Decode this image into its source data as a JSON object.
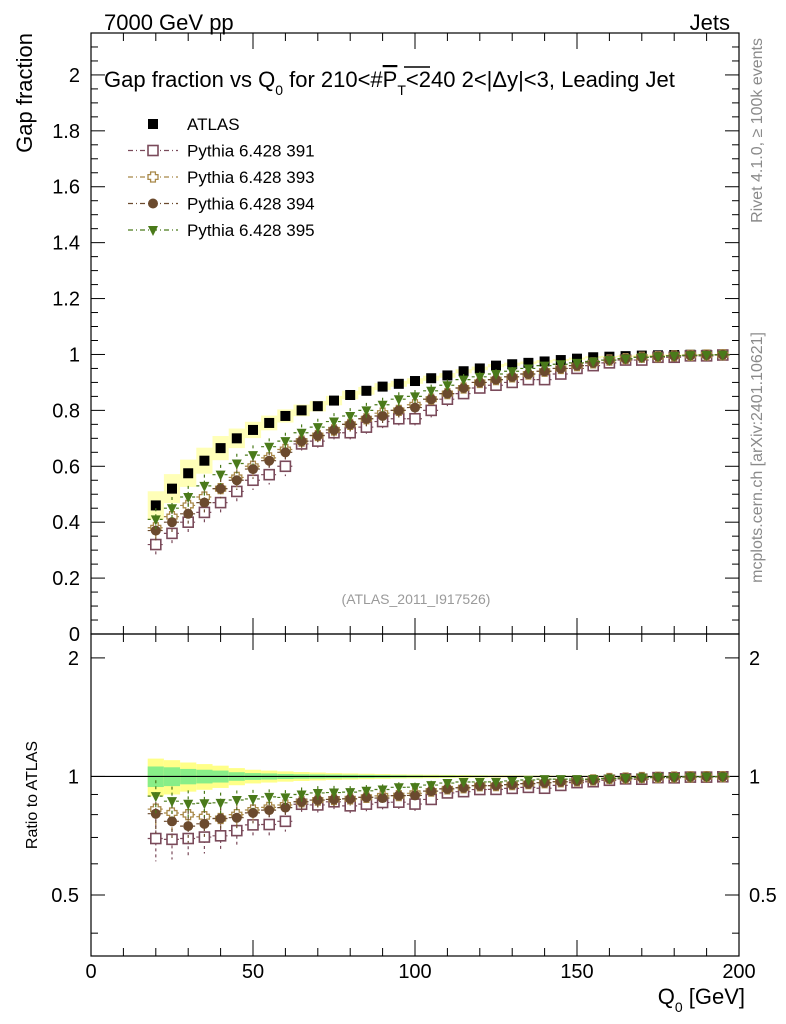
{
  "header": {
    "left": "7000 GeV pp",
    "right": "Jets"
  },
  "side": {
    "rivet": "Rivet 4.1.0, ≥ 100k events",
    "mcplots": "mcplots.cern.ch [arXiv:2401.10621]"
  },
  "chart_data": {
    "type": "scatter",
    "title": "Gap fraction vs Q0 for 210<#P̅T<240  2<|Δy|<3, Leading Jet",
    "title_parts": {
      "t1": "Gap fraction vs Q",
      "t1_sub": "0",
      "t2": " for 210<#",
      "t2_over": "P",
      "t2_sub": "T",
      "t3": "<240  2<|Δy|<3, Leading Jet"
    },
    "analysis_label": "(ATLAS_2011_I917526)",
    "xlabel": "Q",
    "xlabel_sub": "0",
    "xlabel_unit": " [GeV]",
    "ylabel": "Gap fraction",
    "ratio_ylabel": "Ratio to ATLAS",
    "xlim": [
      0,
      200
    ],
    "ylim": [
      0,
      2.15
    ],
    "ratio_ylim": [
      0.35,
      2.3
    ],
    "xticks": [
      0,
      50,
      100,
      150,
      200
    ],
    "yticks": [
      0,
      0.2,
      0.4,
      0.6,
      0.8,
      1,
      1.2,
      1.4,
      1.6,
      1.8,
      2
    ],
    "ratio_yticks": [
      0.5,
      1,
      2
    ],
    "x": [
      20,
      25,
      30,
      35,
      40,
      45,
      50,
      55,
      60,
      65,
      70,
      75,
      80,
      85,
      90,
      95,
      100,
      105,
      110,
      115,
      120,
      125,
      130,
      135,
      140,
      145,
      150,
      155,
      160,
      165,
      170,
      175,
      180,
      185,
      190,
      195
    ],
    "reference": {
      "name": "ATLAS",
      "values": [
        0.46,
        0.52,
        0.575,
        0.62,
        0.665,
        0.7,
        0.73,
        0.755,
        0.78,
        0.8,
        0.815,
        0.835,
        0.855,
        0.87,
        0.885,
        0.895,
        0.905,
        0.915,
        0.925,
        0.94,
        0.95,
        0.96,
        0.965,
        0.97,
        0.975,
        0.98,
        0.985,
        0.99,
        0.992,
        0.994,
        0.996,
        0.997,
        0.998,
        0.999,
        0.999,
        1.0
      ],
      "band_inner": [
        0.06,
        0.055,
        0.045,
        0.04,
        0.035,
        0.025,
        0.02,
        0.018,
        0.015,
        0.013,
        0.012,
        0.011,
        0.01,
        0.009,
        0.008,
        0.007,
        0.006,
        0.005,
        0.005,
        0.004,
        0.004,
        0.003,
        0.003,
        0.003,
        0.002,
        0.002,
        0.002,
        0.002,
        0.001,
        0.001,
        0.001,
        0.001,
        0.001,
        0.001,
        0.001,
        0.001
      ],
      "band_outer": [
        0.11,
        0.1,
        0.085,
        0.075,
        0.065,
        0.05,
        0.04,
        0.035,
        0.03,
        0.026,
        0.023,
        0.02,
        0.018,
        0.016,
        0.014,
        0.012,
        0.011,
        0.01,
        0.009,
        0.008,
        0.007,
        0.006,
        0.006,
        0.005,
        0.005,
        0.004,
        0.004,
        0.004,
        0.003,
        0.003,
        0.003,
        0.003,
        0.002,
        0.002,
        0.002,
        0.002
      ]
    },
    "series": [
      {
        "name": "Pythia 6.428 391",
        "marker": "open-square",
        "color": "#7a4a5a",
        "values": [
          0.32,
          0.36,
          0.4,
          0.435,
          0.47,
          0.51,
          0.55,
          0.57,
          0.6,
          0.68,
          0.69,
          0.72,
          0.72,
          0.74,
          0.76,
          0.77,
          0.77,
          0.8,
          0.84,
          0.86,
          0.88,
          0.89,
          0.9,
          0.91,
          0.91,
          0.93,
          0.95,
          0.96,
          0.97,
          0.98,
          0.98,
          0.99,
          0.99,
          0.995,
          0.995,
          0.998
        ],
        "err": [
          0.04,
          0.04,
          0.04,
          0.04,
          0.04,
          0.04,
          0.035,
          0.035,
          0.035,
          0.03,
          0.03,
          0.03,
          0.03,
          0.03,
          0.03,
          0.03,
          0.03,
          0.025,
          0.025,
          0.02,
          0.02,
          0.02,
          0.02,
          0.02,
          0.015,
          0.015,
          0.012,
          0.01,
          0.01,
          0.008,
          0.007,
          0.006,
          0.005,
          0.004,
          0.003,
          0.003
        ]
      },
      {
        "name": "Pythia 6.428 393",
        "marker": "open-cross",
        "color": "#a88848",
        "values": [
          0.38,
          0.42,
          0.46,
          0.49,
          0.52,
          0.56,
          0.6,
          0.63,
          0.66,
          0.69,
          0.71,
          0.73,
          0.75,
          0.77,
          0.79,
          0.8,
          0.82,
          0.84,
          0.86,
          0.88,
          0.9,
          0.91,
          0.92,
          0.93,
          0.94,
          0.95,
          0.96,
          0.97,
          0.98,
          0.985,
          0.99,
          0.992,
          0.995,
          0.997,
          0.998,
          0.999
        ],
        "err": [
          0.04,
          0.04,
          0.04,
          0.04,
          0.035,
          0.035,
          0.035,
          0.03,
          0.03,
          0.03,
          0.03,
          0.03,
          0.028,
          0.027,
          0.025,
          0.025,
          0.023,
          0.022,
          0.02,
          0.02,
          0.018,
          0.017,
          0.015,
          0.014,
          0.012,
          0.011,
          0.01,
          0.009,
          0.008,
          0.007,
          0.006,
          0.005,
          0.004,
          0.003,
          0.003,
          0.002
        ]
      },
      {
        "name": "Pythia 6.428 394",
        "marker": "filled-circle",
        "color": "#6b4a2e",
        "values": [
          0.37,
          0.4,
          0.43,
          0.47,
          0.52,
          0.55,
          0.59,
          0.62,
          0.65,
          0.69,
          0.71,
          0.73,
          0.75,
          0.77,
          0.78,
          0.8,
          0.81,
          0.84,
          0.86,
          0.88,
          0.9,
          0.91,
          0.92,
          0.93,
          0.94,
          0.95,
          0.96,
          0.97,
          0.98,
          0.985,
          0.99,
          0.993,
          0.995,
          0.997,
          0.998,
          0.999
        ],
        "err": [
          0.04,
          0.04,
          0.04,
          0.04,
          0.035,
          0.035,
          0.035,
          0.03,
          0.03,
          0.03,
          0.03,
          0.03,
          0.028,
          0.027,
          0.025,
          0.025,
          0.023,
          0.022,
          0.02,
          0.02,
          0.018,
          0.017,
          0.015,
          0.014,
          0.012,
          0.011,
          0.01,
          0.009,
          0.008,
          0.007,
          0.006,
          0.005,
          0.004,
          0.003,
          0.003,
          0.002
        ]
      },
      {
        "name": "Pythia 6.428 395",
        "marker": "filled-triangle-down",
        "color": "#4a7a1a",
        "values": [
          0.41,
          0.45,
          0.49,
          0.53,
          0.57,
          0.61,
          0.64,
          0.67,
          0.69,
          0.72,
          0.74,
          0.76,
          0.78,
          0.8,
          0.82,
          0.84,
          0.85,
          0.87,
          0.89,
          0.91,
          0.92,
          0.93,
          0.94,
          0.95,
          0.96,
          0.965,
          0.97,
          0.975,
          0.98,
          0.985,
          0.99,
          0.993,
          0.995,
          0.997,
          0.998,
          0.999
        ],
        "err": [
          0.04,
          0.04,
          0.04,
          0.04,
          0.035,
          0.035,
          0.035,
          0.03,
          0.03,
          0.03,
          0.03,
          0.03,
          0.028,
          0.027,
          0.025,
          0.025,
          0.023,
          0.022,
          0.02,
          0.02,
          0.018,
          0.017,
          0.015,
          0.014,
          0.012,
          0.011,
          0.01,
          0.009,
          0.008,
          0.007,
          0.006,
          0.005,
          0.004,
          0.003,
          0.003,
          0.002
        ]
      }
    ]
  }
}
